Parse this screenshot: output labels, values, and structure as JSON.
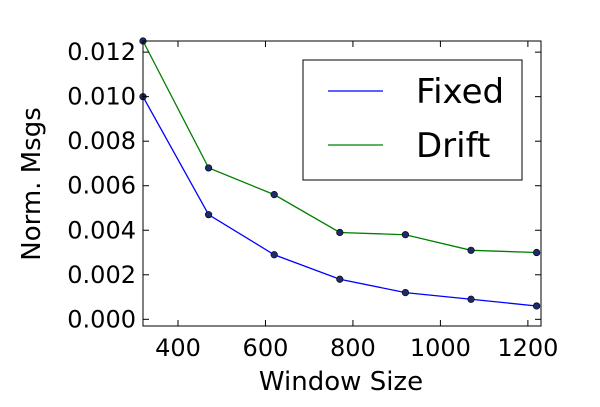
{
  "chart_data": {
    "type": "line",
    "xlabel": "Window Size",
    "ylabel": "Norm. Msgs",
    "xlim": [
      320,
      1230
    ],
    "ylim": [
      -0.0003,
      0.0125
    ],
    "x": [
      320,
      470,
      620,
      770,
      920,
      1070,
      1220
    ],
    "xticks": [
      400,
      600,
      800,
      1000,
      1200
    ],
    "xtick_labels": [
      "400",
      "600",
      "800",
      "1000",
      "1200"
    ],
    "yticks": [
      0.0,
      0.002,
      0.004,
      0.006,
      0.008,
      0.01,
      0.012
    ],
    "ytick_labels": [
      "0.000",
      "0.002",
      "0.004",
      "0.006",
      "0.008",
      "0.010",
      "0.012"
    ],
    "grid": false,
    "legend_position": "top-right",
    "series": [
      {
        "name": "Fixed",
        "color": "#0000ff",
        "values": [
          0.01,
          0.0047,
          0.0029,
          0.0018,
          0.0012,
          0.0009,
          0.0006
        ]
      },
      {
        "name": "Drift",
        "color": "#008000",
        "values": [
          0.0125,
          0.0068,
          0.0056,
          0.0039,
          0.0038,
          0.0031,
          0.003
        ]
      }
    ],
    "marker_color": "#1f2a6b"
  }
}
